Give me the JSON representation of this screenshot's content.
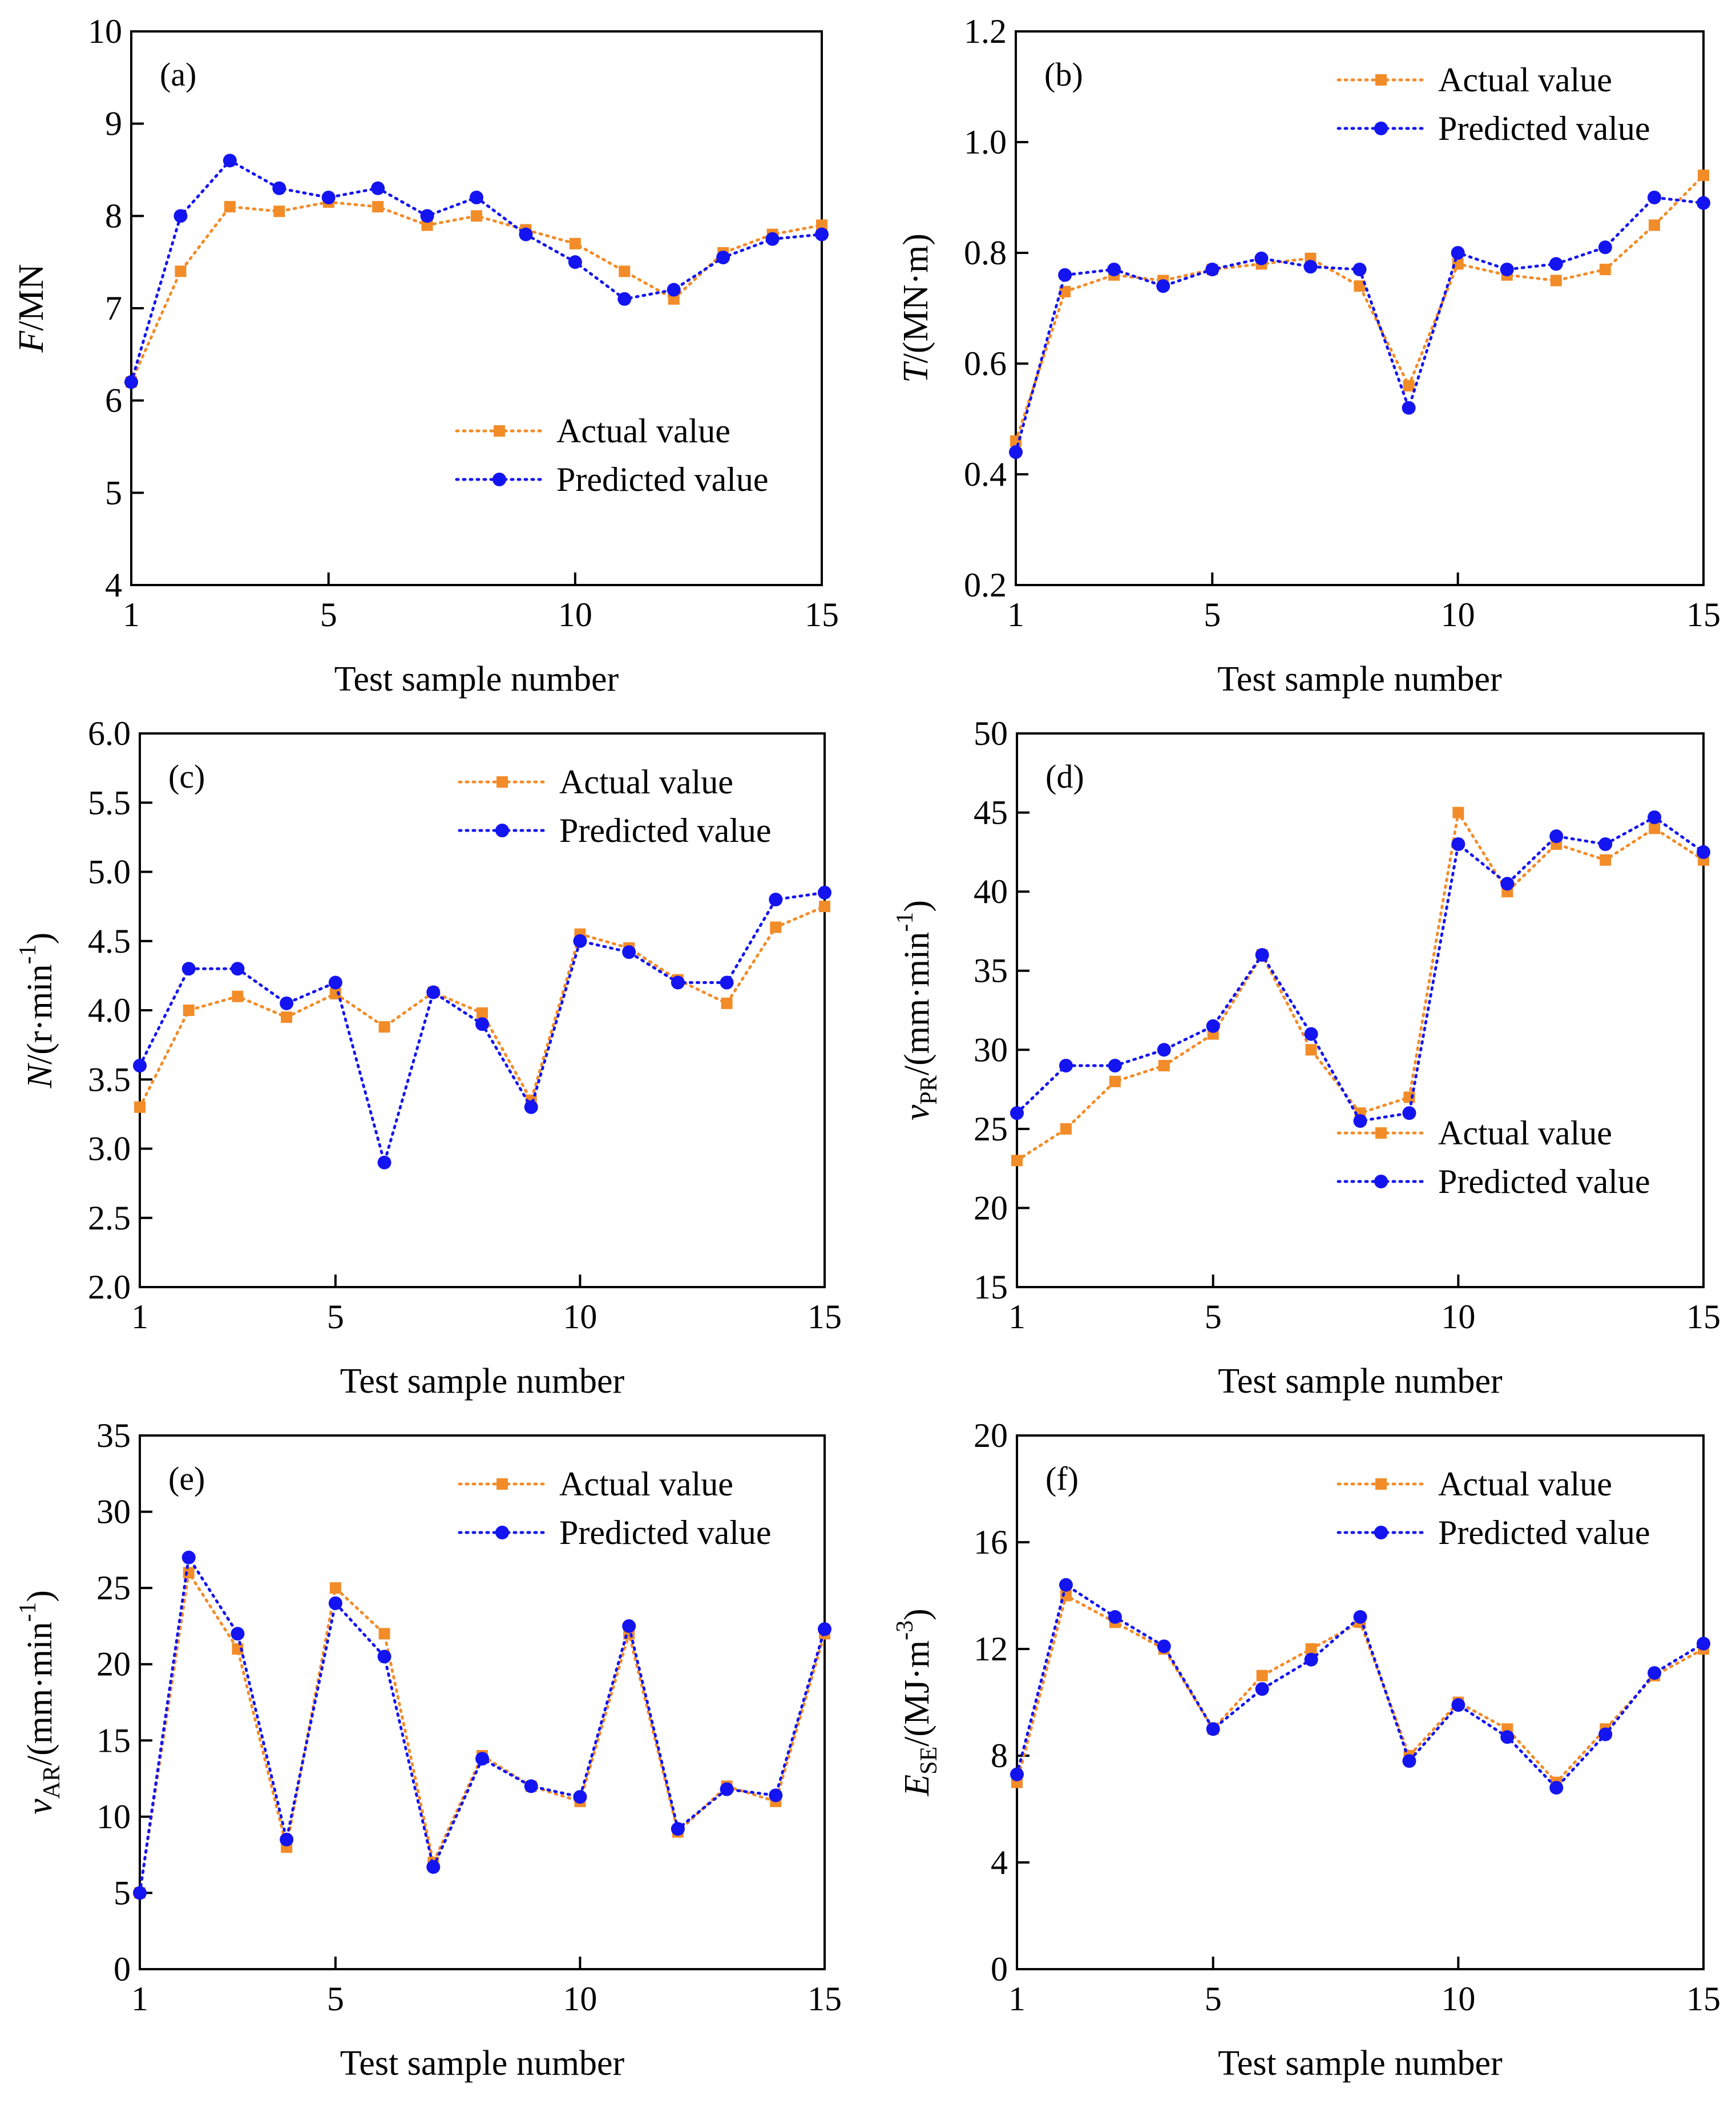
{
  "colors": {
    "actual": "#F28C28",
    "predicted": "#1414F0",
    "axis": "#000000"
  },
  "chart_data": [
    {
      "id": "a",
      "type": "line",
      "panel_label": "(a)",
      "xlabel": "Test sample number",
      "ylabel_parts": [
        {
          "t": "F",
          "italic": true
        },
        {
          "t": "/MN"
        }
      ],
      "xlim": [
        1,
        15
      ],
      "ylim": [
        4,
        10
      ],
      "xticks": [
        1,
        5,
        10,
        15
      ],
      "yticks": [
        4,
        5,
        6,
        7,
        8,
        9,
        10
      ],
      "ytick_labels": [
        "4",
        "5",
        "6",
        "7",
        "8",
        "9",
        "10"
      ],
      "legend_position": "lower-right",
      "x": [
        1,
        2,
        3,
        4,
        5,
        6,
        7,
        8,
        9,
        10,
        11,
        12,
        13,
        14,
        15
      ],
      "series": [
        {
          "name": "Actual value",
          "key": "actual",
          "marker": "square",
          "values": [
            6.2,
            7.4,
            8.1,
            8.05,
            8.15,
            8.1,
            7.9,
            8.0,
            7.85,
            7.7,
            7.4,
            7.1,
            7.6,
            7.8,
            7.9
          ]
        },
        {
          "name": "Predicted value",
          "key": "predicted",
          "marker": "circle",
          "values": [
            6.2,
            8.0,
            8.6,
            8.3,
            8.2,
            8.3,
            8.0,
            8.2,
            7.8,
            7.5,
            7.1,
            7.2,
            7.55,
            7.75,
            7.8
          ]
        }
      ]
    },
    {
      "id": "b",
      "type": "line",
      "panel_label": "(b)",
      "xlabel": "Test sample number",
      "ylabel_parts": [
        {
          "t": "T",
          "italic": true
        },
        {
          "t": "/(MN·m)"
        }
      ],
      "xlim": [
        1,
        15
      ],
      "ylim": [
        0.2,
        1.2
      ],
      "xticks": [
        1,
        5,
        10,
        15
      ],
      "yticks": [
        0.2,
        0.4,
        0.6,
        0.8,
        1.0,
        1.2
      ],
      "ytick_labels": [
        "0.2",
        "0.4",
        "0.6",
        "0.8",
        "1.0",
        "1.2"
      ],
      "legend_position": "top-right",
      "x": [
        1,
        2,
        3,
        4,
        5,
        6,
        7,
        8,
        9,
        10,
        11,
        12,
        13,
        14,
        15
      ],
      "series": [
        {
          "name": "Actual value",
          "key": "actual",
          "marker": "square",
          "values": [
            0.46,
            0.73,
            0.76,
            0.75,
            0.77,
            0.78,
            0.79,
            0.74,
            0.56,
            0.78,
            0.76,
            0.75,
            0.77,
            0.85,
            0.94
          ]
        },
        {
          "name": "Predicted value",
          "key": "predicted",
          "marker": "circle",
          "values": [
            0.44,
            0.76,
            0.77,
            0.74,
            0.77,
            0.79,
            0.775,
            0.77,
            0.52,
            0.8,
            0.77,
            0.78,
            0.81,
            0.9,
            0.89
          ]
        }
      ]
    },
    {
      "id": "c",
      "type": "line",
      "panel_label": "(c)",
      "xlabel": "Test sample number",
      "ylabel_parts": [
        {
          "t": "N",
          "italic": true
        },
        {
          "t": "/(r·min"
        },
        {
          "t": "-1",
          "sup": true
        },
        {
          "t": ")"
        }
      ],
      "xlim": [
        1,
        15
      ],
      "ylim": [
        2.0,
        6.0
      ],
      "xticks": [
        1,
        5,
        10,
        15
      ],
      "yticks": [
        2.0,
        2.5,
        3.0,
        3.5,
        4.0,
        4.5,
        5.0,
        5.5,
        6.0
      ],
      "ytick_labels": [
        "2.0",
        "2.5",
        "3.0",
        "3.5",
        "4.0",
        "4.5",
        "5.0",
        "5.5",
        "6.0"
      ],
      "legend_position": "top-right",
      "x": [
        1,
        2,
        3,
        4,
        5,
        6,
        7,
        8,
        9,
        10,
        11,
        12,
        13,
        14,
        15
      ],
      "series": [
        {
          "name": "Actual value",
          "key": "actual",
          "marker": "square",
          "values": [
            3.3,
            4.0,
            4.1,
            3.95,
            4.12,
            3.88,
            4.13,
            3.98,
            3.35,
            4.55,
            4.45,
            4.22,
            4.05,
            4.6,
            4.75
          ]
        },
        {
          "name": "Predicted value",
          "key": "predicted",
          "marker": "circle",
          "values": [
            3.6,
            4.3,
            4.3,
            4.05,
            4.2,
            2.9,
            4.13,
            3.9,
            3.3,
            4.5,
            4.42,
            4.2,
            4.2,
            4.8,
            4.85
          ]
        }
      ]
    },
    {
      "id": "d",
      "type": "line",
      "panel_label": "(d)",
      "xlabel": "Test sample number",
      "ylabel_parts": [
        {
          "t": "v",
          "italic": true
        },
        {
          "t": "PR",
          "sub": true
        },
        {
          "t": "/(mm·min"
        },
        {
          "t": "-1",
          "sup": true
        },
        {
          "t": ")"
        }
      ],
      "xlim": [
        1,
        15
      ],
      "ylim": [
        15,
        50
      ],
      "xticks": [
        1,
        5,
        10,
        15
      ],
      "yticks": [
        15,
        20,
        25,
        30,
        35,
        40,
        45,
        50
      ],
      "ytick_labels": [
        "15",
        "20",
        "25",
        "30",
        "35",
        "40",
        "45",
        "50"
      ],
      "legend_position": "lower-right",
      "x": [
        1,
        2,
        3,
        4,
        5,
        6,
        7,
        8,
        9,
        10,
        11,
        12,
        13,
        14,
        15
      ],
      "series": [
        {
          "name": "Actual value",
          "key": "actual",
          "marker": "square",
          "values": [
            23,
            25,
            28,
            29,
            31,
            36,
            30,
            26,
            27,
            45,
            40,
            43,
            42,
            44,
            42
          ]
        },
        {
          "name": "Predicted value",
          "key": "predicted",
          "marker": "circle",
          "values": [
            26,
            29,
            29,
            30,
            31.5,
            36,
            31,
            25.5,
            26,
            43,
            40.5,
            43.5,
            43,
            44.7,
            42.5
          ]
        }
      ]
    },
    {
      "id": "e",
      "type": "line",
      "panel_label": "(e)",
      "xlabel": "Test sample number",
      "ylabel_parts": [
        {
          "t": "v",
          "italic": true
        },
        {
          "t": "AR",
          "sub": true
        },
        {
          "t": "/(mm·min"
        },
        {
          "t": "-1",
          "sup": true
        },
        {
          "t": ")"
        }
      ],
      "xlim": [
        1,
        15
      ],
      "ylim": [
        0,
        35
      ],
      "xticks": [
        1,
        5,
        10,
        15
      ],
      "yticks": [
        0,
        5,
        10,
        15,
        20,
        25,
        30,
        35
      ],
      "ytick_labels": [
        "0",
        "5",
        "10",
        "15",
        "20",
        "25",
        "30",
        "35"
      ],
      "legend_position": "top-right",
      "x": [
        1,
        2,
        3,
        4,
        5,
        6,
        7,
        8,
        9,
        10,
        11,
        12,
        13,
        14,
        15
      ],
      "series": [
        {
          "name": "Actual value",
          "key": "actual",
          "marker": "square",
          "values": [
            5,
            26,
            21,
            8,
            25,
            22,
            7,
            14,
            12,
            11,
            22,
            9,
            12,
            11,
            22
          ]
        },
        {
          "name": "Predicted value",
          "key": "predicted",
          "marker": "circle",
          "values": [
            5,
            27,
            22,
            8.5,
            24,
            20.5,
            6.7,
            13.8,
            12,
            11.3,
            22.5,
            9.2,
            11.8,
            11.4,
            22.3
          ]
        }
      ]
    },
    {
      "id": "f",
      "type": "line",
      "panel_label": "(f)",
      "xlabel": "Test sample number",
      "ylabel_parts": [
        {
          "t": "E",
          "italic": true
        },
        {
          "t": "SE",
          "sub": true
        },
        {
          "t": "/(MJ·m"
        },
        {
          "t": "-3",
          "sup": true
        },
        {
          "t": ")"
        }
      ],
      "xlim": [
        1,
        15
      ],
      "ylim": [
        0,
        20
      ],
      "xticks": [
        1,
        5,
        10,
        15
      ],
      "yticks": [
        0,
        4,
        8,
        12,
        16,
        20
      ],
      "ytick_labels": [
        "0",
        "4",
        "8",
        "12",
        "16",
        "20"
      ],
      "legend_position": "top-right",
      "x": [
        1,
        2,
        3,
        4,
        5,
        6,
        7,
        8,
        9,
        10,
        11,
        12,
        13,
        14,
        15
      ],
      "series": [
        {
          "name": "Actual value",
          "key": "actual",
          "marker": "square",
          "values": [
            7,
            14,
            13,
            12,
            9,
            11,
            12,
            13,
            8,
            10,
            9,
            7,
            9,
            11,
            12
          ]
        },
        {
          "name": "Predicted value",
          "key": "predicted",
          "marker": "circle",
          "values": [
            7.3,
            14.4,
            13.2,
            12.1,
            9,
            10.5,
            11.6,
            13.2,
            7.8,
            9.9,
            8.7,
            6.8,
            8.8,
            11.1,
            12.2
          ]
        }
      ]
    }
  ]
}
